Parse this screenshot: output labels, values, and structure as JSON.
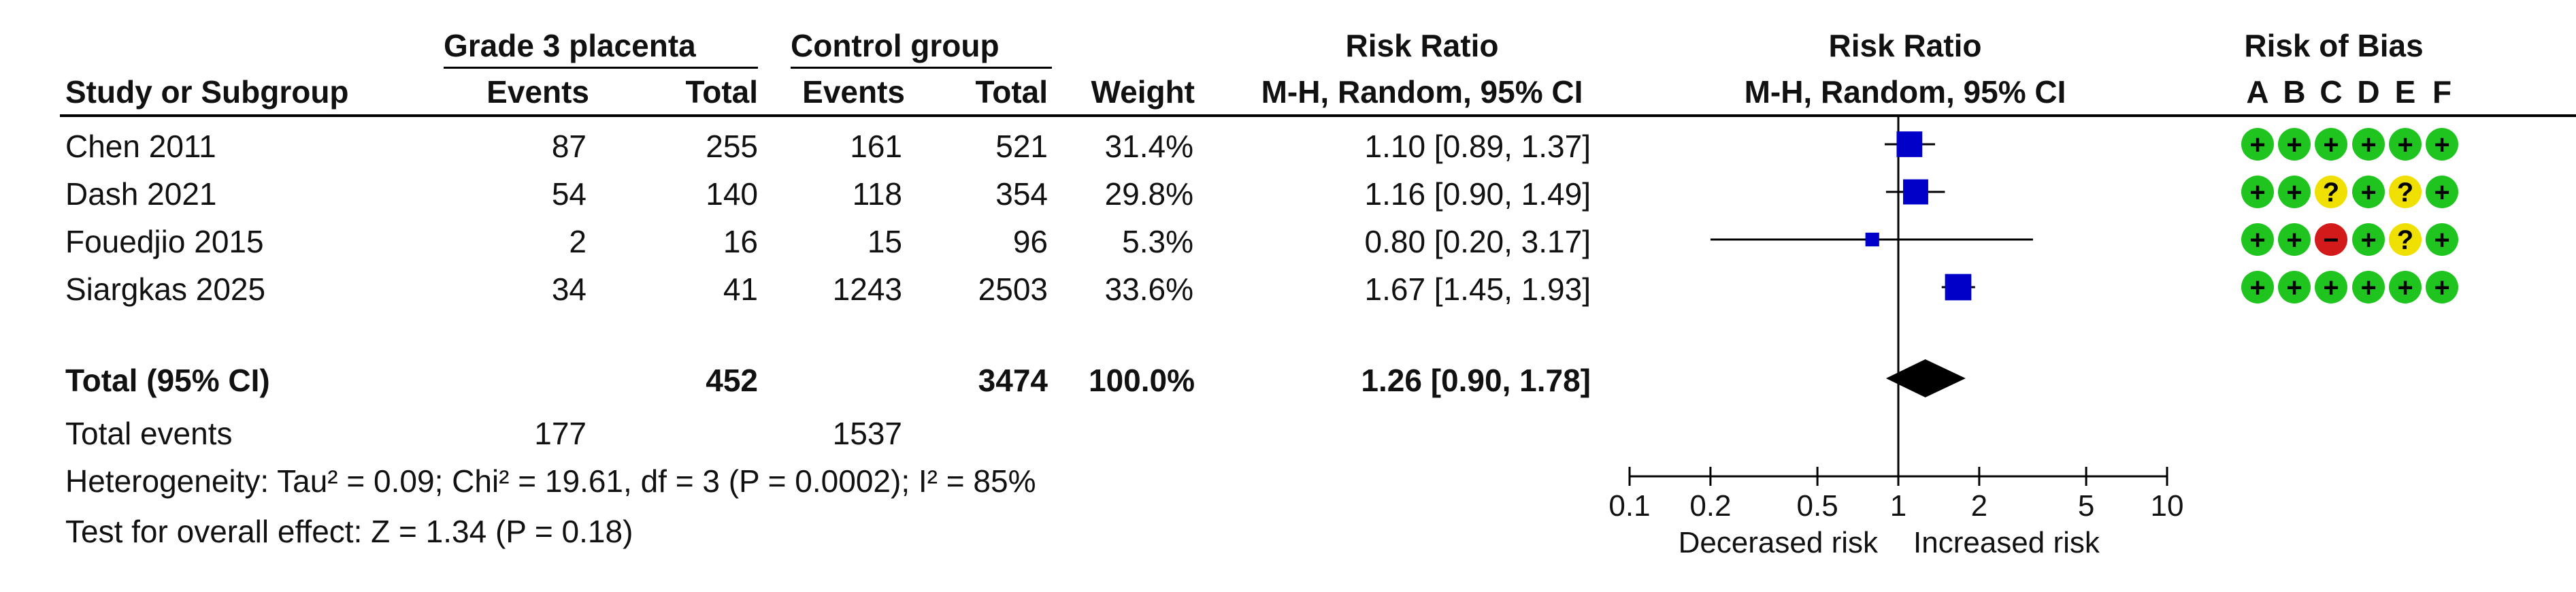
{
  "headers": {
    "group1": "Grade 3 placenta",
    "group2": "Control group",
    "rr_title": "Risk Ratio",
    "rr_method": "M-H, Random, 95% CI",
    "plot_title": "Risk Ratio",
    "plot_method": "M-H, Random, 95% CI",
    "bias_title": "Risk of Bias",
    "study_col": "Study or Subgroup",
    "events1": "Events",
    "total1": "Total",
    "events2": "Events",
    "total2": "Total",
    "weight": "Weight",
    "bias_letters": [
      "A",
      "B",
      "C",
      "D",
      "E",
      "F"
    ]
  },
  "studies": [
    {
      "name": "Chen 2011",
      "e1": "87",
      "n1": "255",
      "e2": "161",
      "n2": "521",
      "weight": "31.4%",
      "ci": "1.10 [0.89, 1.37]",
      "bias": [
        "+",
        "+",
        "+",
        "+",
        "+",
        "+"
      ]
    },
    {
      "name": "Dash 2021",
      "e1": "54",
      "n1": "140",
      "e2": "118",
      "n2": "354",
      "weight": "29.8%",
      "ci": "1.16 [0.90, 1.49]",
      "bias": [
        "+",
        "+",
        "?",
        "+",
        "?",
        "+"
      ]
    },
    {
      "name": "Fouedjio 2015",
      "e1": "2",
      "n1": "16",
      "e2": "15",
      "n2": "96",
      "weight": "5.3%",
      "ci": "0.80 [0.20, 3.17]",
      "bias": [
        "+",
        "+",
        "−",
        "+",
        "?",
        "+"
      ]
    },
    {
      "name": "Siargkas 2025",
      "e1": "34",
      "n1": "41",
      "e2": "1243",
      "n2": "2503",
      "weight": "33.6%",
      "ci": "1.67 [1.45, 1.93]",
      "bias": [
        "+",
        "+",
        "+",
        "+",
        "+",
        "+"
      ]
    }
  ],
  "total": {
    "label": "Total (95% CI)",
    "n1": "452",
    "n2": "3474",
    "weight": "100.0%",
    "ci": "1.26 [0.90, 1.78]"
  },
  "total_events": {
    "label": "Total events",
    "e1": "177",
    "e2": "1537"
  },
  "heterogeneity": "Heterogeneity: Tau² = 0.09; Chi² = 19.61, df = 3 (P = 0.0002); I² = 85%",
  "overall_effect": "Test for overall effect: Z = 1.34 (P = 0.18)",
  "axis": {
    "favours_left": "Decerased risk",
    "favours_right": "Increased risk"
  },
  "bias_colors": {
    "+": "#1fc41f",
    "?": "#f0e000",
    "−": "#d21a1a"
  },
  "chart_data": {
    "type": "forest",
    "scale": "log",
    "xlim": [
      0.1,
      10
    ],
    "reference_line": 1,
    "ticks": [
      0.1,
      0.2,
      0.5,
      1,
      2,
      5,
      10
    ],
    "tick_labels": [
      "0.1",
      "0.2",
      "0.5",
      "1",
      "2",
      "5",
      "10"
    ],
    "studies": [
      {
        "name": "Chen 2011",
        "rr": 1.1,
        "lower": 0.89,
        "upper": 1.37,
        "weight": 31.4
      },
      {
        "name": "Dash 2021",
        "rr": 1.16,
        "lower": 0.9,
        "upper": 1.49,
        "weight": 29.8
      },
      {
        "name": "Fouedjio 2015",
        "rr": 0.8,
        "lower": 0.2,
        "upper": 3.17,
        "weight": 5.3
      },
      {
        "name": "Siargkas 2025",
        "rr": 1.67,
        "lower": 1.45,
        "upper": 1.93,
        "weight": 33.6
      }
    ],
    "pooled": {
      "rr": 1.26,
      "lower": 0.9,
      "upper": 1.78
    },
    "colors": {
      "square": "#0000c8",
      "diamond": "#000000"
    }
  }
}
